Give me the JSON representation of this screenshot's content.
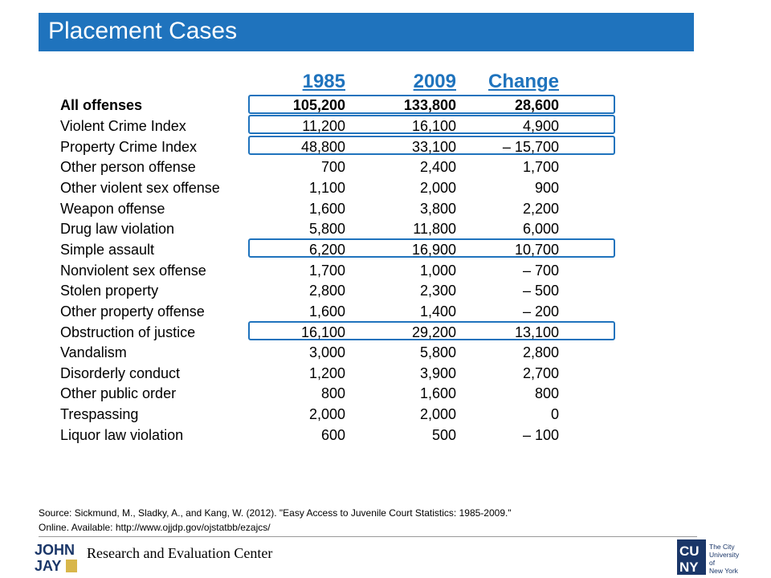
{
  "title": "Placement Cases",
  "columns": {
    "year1": "1985",
    "year2": "2009",
    "change": "Change"
  },
  "rows": [
    {
      "label": "All offenses",
      "v1985": "105,200",
      "v2009": "133,800",
      "change": "28,600"
    },
    {
      "label": "Violent Crime Index",
      "v1985": "11,200",
      "v2009": "16,100",
      "change": "4,900"
    },
    {
      "label": "Property Crime Index",
      "v1985": "48,800",
      "v2009": "33,100",
      "change": "– 15,700"
    },
    {
      "label": "Other person offense",
      "v1985": "700",
      "v2009": "2,400",
      "change": "1,700"
    },
    {
      "label": "Other violent sex offense",
      "v1985": "1,100",
      "v2009": "2,000",
      "change": "900"
    },
    {
      "label": "Weapon offense",
      "v1985": "1,600",
      "v2009": "3,800",
      "change": "2,200"
    },
    {
      "label": "Drug law violation",
      "v1985": "5,800",
      "v2009": "11,800",
      "change": "6,000"
    },
    {
      "label": "Simple assault",
      "v1985": "6,200",
      "v2009": "16,900",
      "change": "10,700"
    },
    {
      "label": "Nonviolent sex offense",
      "v1985": "1,700",
      "v2009": "1,000",
      "change": "– 700"
    },
    {
      "label": "Stolen property",
      "v1985": "2,800",
      "v2009": "2,300",
      "change": "– 500"
    },
    {
      "label": "Other property offense",
      "v1985": "1,600",
      "v2009": "1,400",
      "change": "– 200"
    },
    {
      "label": "Obstruction of justice",
      "v1985": "16,100",
      "v2009": "29,200",
      "change": "13,100"
    },
    {
      "label": "Vandalism",
      "v1985": "3,000",
      "v2009": "5,800",
      "change": "2,800"
    },
    {
      "label": "Disorderly conduct",
      "v1985": "1,200",
      "v2009": "3,900",
      "change": "2,700"
    },
    {
      "label": "Other public order",
      "v1985": "800",
      "v2009": "1,600",
      "change": "800"
    },
    {
      "label": "Trespassing",
      "v1985": "2,000",
      "v2009": "2,000",
      "change": "0"
    },
    {
      "label": "Liquor law violation",
      "v1985": "600",
      "v2009": "500",
      "change": "– 100"
    }
  ],
  "source": {
    "line1": "Source: Sickmund, M., Sladky, A., and Kang, W. (2012). \"Easy Access to Juvenile Court Statistics: 1985-2009.\"",
    "line2": "Online. Available: http://www.ojjdp.gov/ojstatbb/ezajcs/"
  },
  "footer": {
    "text": "Research and Evaluation Center",
    "left_logo": "JOHN JAY",
    "right_logo": "CUNY",
    "right_logo_caption": "The City University of New York"
  },
  "colors": {
    "accent": "#1f73bd",
    "title_text": "#ffffff"
  }
}
